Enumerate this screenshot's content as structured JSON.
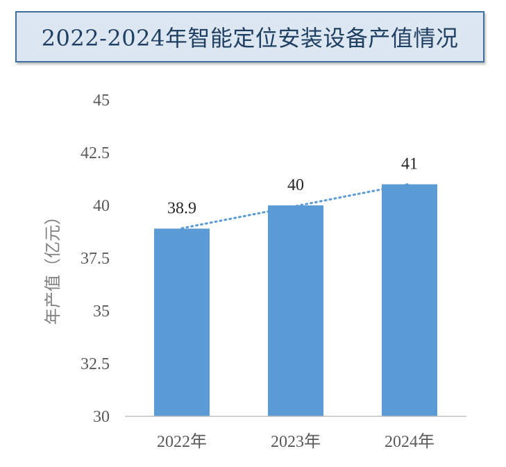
{
  "chart_data": {
    "type": "bar",
    "title": "2022-2024年智能定位安装设备产值情况",
    "categories": [
      "2022年",
      "2023年",
      "2024年"
    ],
    "series": [
      {
        "values": [
          38.9,
          40,
          41
        ]
      }
    ],
    "data_labels": [
      "38.9",
      "40",
      "41"
    ],
    "ylabel": "年产值（亿元）",
    "xlabel": "",
    "ylim": [
      30,
      45
    ],
    "yticks": [
      30,
      32.5,
      35,
      37.5,
      40,
      42.5,
      45
    ],
    "ytick_labels": [
      "30",
      "32.5",
      "35",
      "37.5",
      "40",
      "42.5",
      "45"
    ],
    "trendline": {
      "type": "linear",
      "style": "dotted"
    },
    "grid": false,
    "legend": "none",
    "colors": {
      "bar": "#5b9bd5",
      "trendline": "#5b9bd5",
      "title_background": "#dde7f1",
      "title_border": "#3f6f9f"
    }
  }
}
